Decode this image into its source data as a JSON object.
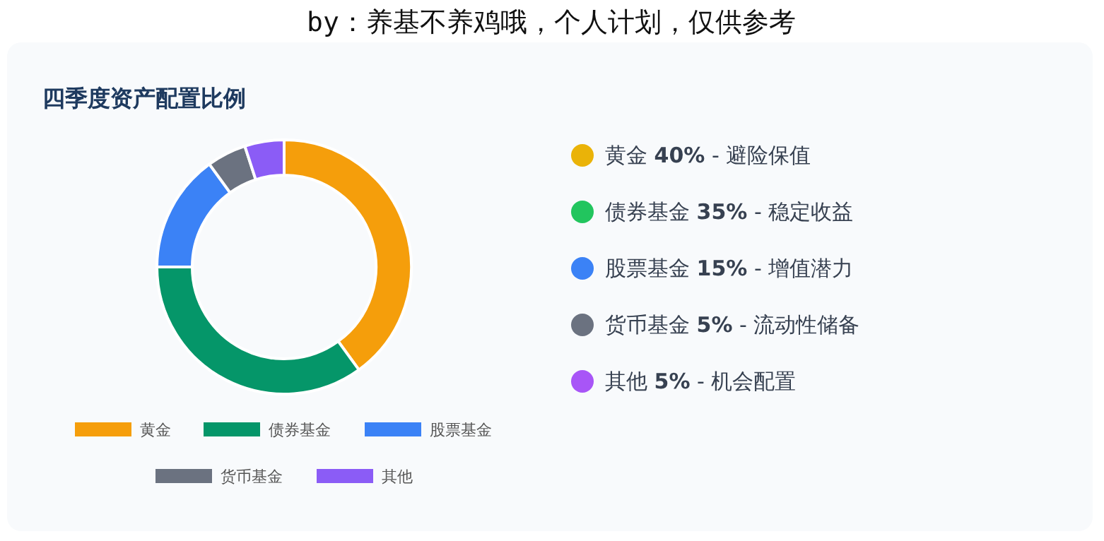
{
  "chart_data": [
    {
      "type": "donut",
      "title": "四季度资产配置比例",
      "annotations": [
        "by：养基不养鸡哦，个人计划，仅供参考"
      ],
      "categories": [
        "黄金",
        "债券基金",
        "股票基金",
        "货币基金",
        "其他"
      ],
      "values": [
        40,
        35,
        15,
        5,
        5
      ],
      "colors": [
        "#f59e0b",
        "#059669",
        "#3b82f6",
        "#6b7280",
        "#8b5cf6"
      ],
      "legend": "bottom"
    },
    {
      "type": "other",
      "annotations": [
        "黄金 40% - 避险保值",
        "债券基金 35% - 稳定收益",
        "股票基金 15% - 增值潜力",
        "货币基金 5% - 流动性储备",
        "其他 5% - 机会配置"
      ],
      "colors": [
        "#eab308",
        "#22c55e",
        "#3b82f6",
        "#6b7280",
        "#a855f7"
      ]
    }
  ]
}
